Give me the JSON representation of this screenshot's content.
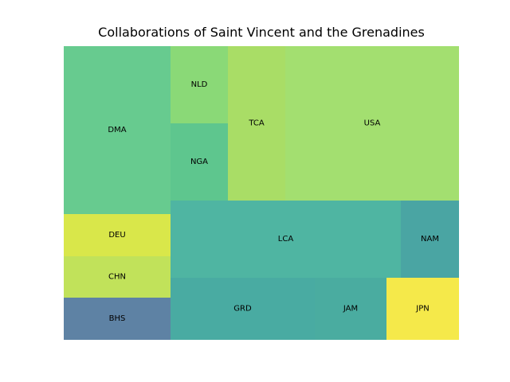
{
  "chart_data": {
    "type": "treemap",
    "title": "Collaborations of Saint Vincent and the Grenadines",
    "tiles": [
      {
        "label": "DMA",
        "color": "#67cb8f"
      },
      {
        "label": "NLD",
        "color": "#8ad977"
      },
      {
        "label": "NGA",
        "color": "#5ec68e"
      },
      {
        "label": "TCA",
        "color": "#a9dd66"
      },
      {
        "label": "USA",
        "color": "#a3df70"
      },
      {
        "label": "DEU",
        "color": "#d9e74a"
      },
      {
        "label": "CHN",
        "color": "#c1e25a"
      },
      {
        "label": "BHS",
        "color": "#5e82a4"
      },
      {
        "label": "LCA",
        "color": "#4fb5a2"
      },
      {
        "label": "NAM",
        "color": "#4aa5a3"
      },
      {
        "label": "GRD",
        "color": "#49aba2"
      },
      {
        "label": "JAM",
        "color": "#4aaca0"
      },
      {
        "label": "JPN",
        "color": "#f5e94a"
      }
    ]
  }
}
